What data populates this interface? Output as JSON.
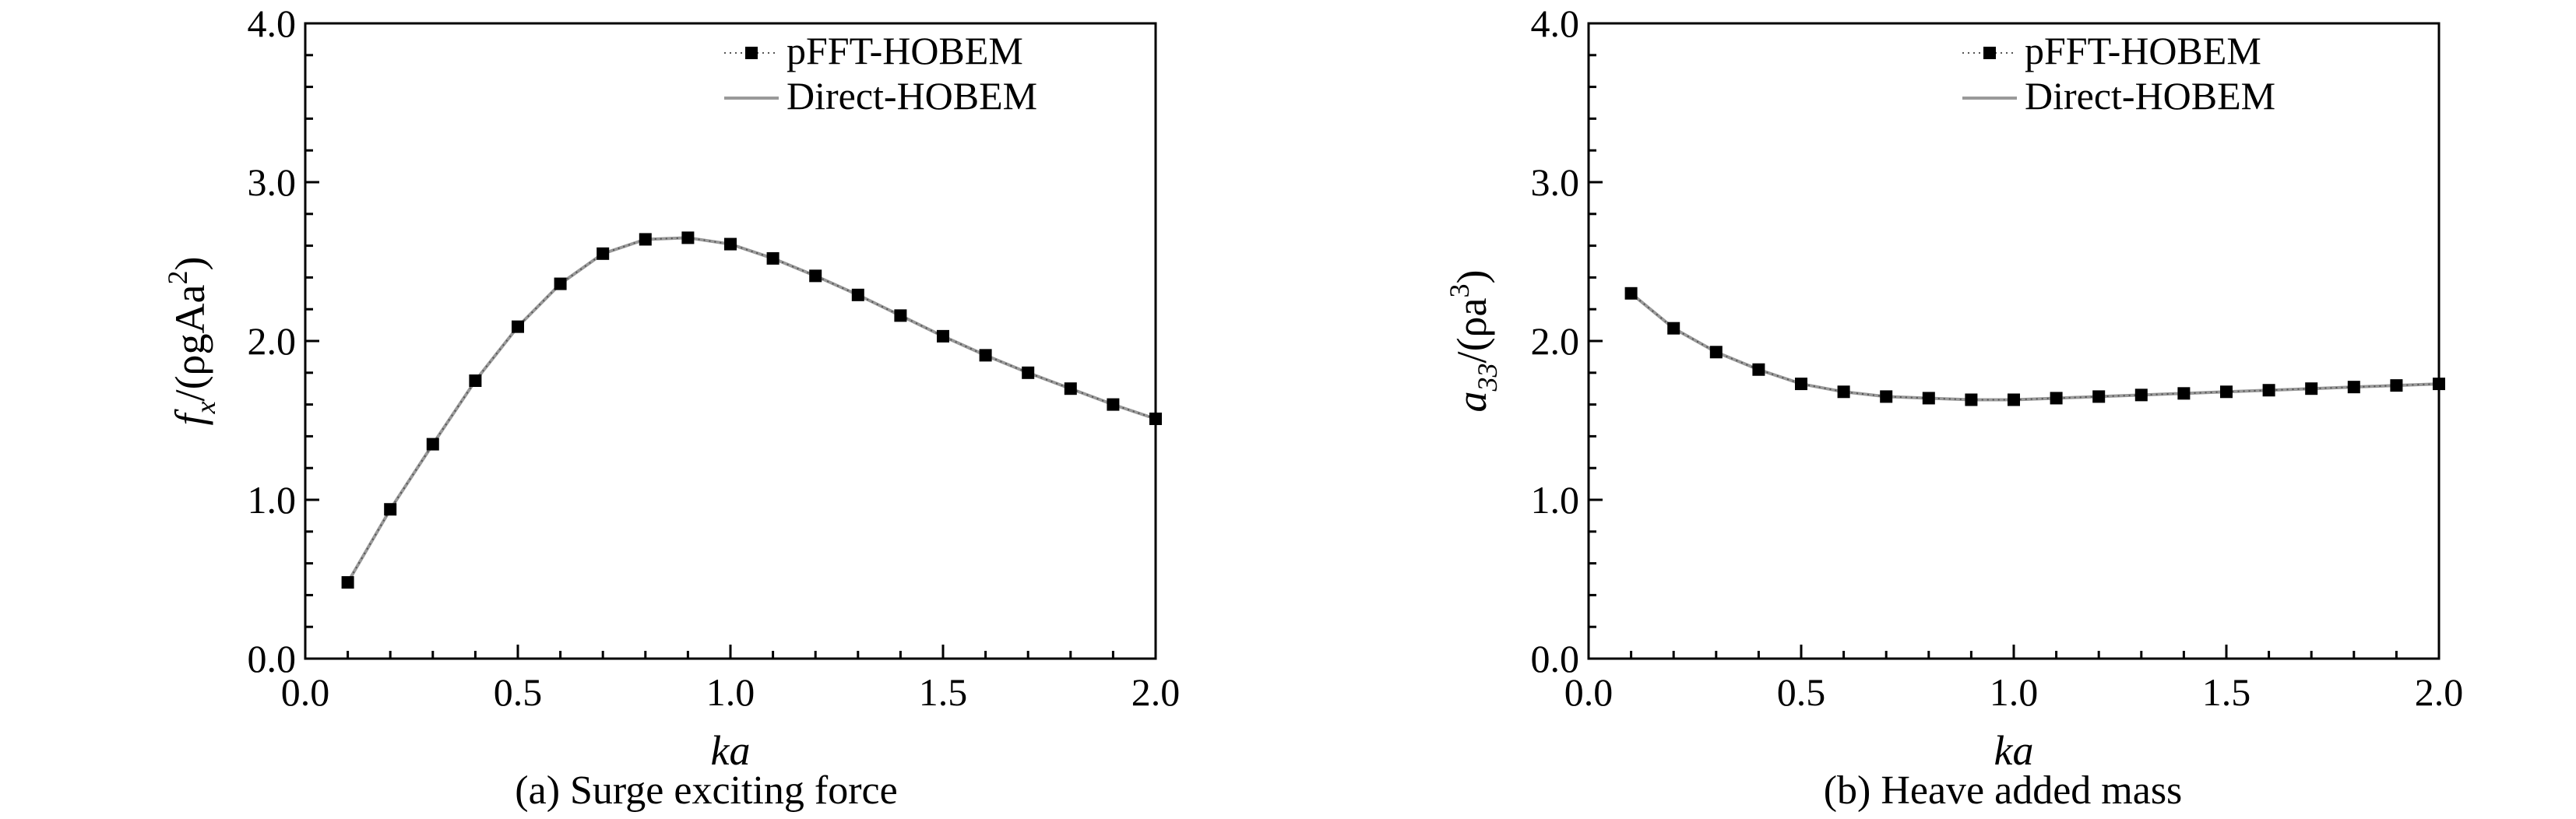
{
  "chart_data": [
    {
      "type": "line",
      "caption": "(a) Surge exciting force",
      "xlabel": "ka",
      "ylabel": {
        "prefix": "f",
        "sub": "x",
        "mid": "/(ρgAa",
        "sup": "2",
        "suffix": ")"
      },
      "xlim": [
        0.0,
        2.0
      ],
      "ylim": [
        0.0,
        4.0
      ],
      "xticks": [
        "0.0",
        "0.5",
        "1.0",
        "1.5",
        "2.0"
      ],
      "yticks": [
        "0.0",
        "1.0",
        "2.0",
        "3.0",
        "4.0"
      ],
      "legend_position": "top-right",
      "grid": false,
      "series": [
        {
          "name": "pFFT-HOBEM",
          "style": "dotted-square-markers",
          "color": "#000000",
          "x": [
            0.1,
            0.2,
            0.3,
            0.4,
            0.5,
            0.6,
            0.7,
            0.8,
            0.9,
            1.0,
            1.1,
            1.2,
            1.3,
            1.4,
            1.5,
            1.6,
            1.7,
            1.8,
            1.9,
            2.0
          ],
          "y": [
            0.48,
            0.94,
            1.35,
            1.75,
            2.09,
            2.36,
            2.55,
            2.64,
            2.65,
            2.61,
            2.52,
            2.41,
            2.29,
            2.16,
            2.03,
            1.91,
            1.8,
            1.7,
            1.6,
            1.51
          ]
        },
        {
          "name": "Direct-HOBEM",
          "style": "solid-line",
          "color": "#9a9a9a",
          "x": [
            0.1,
            0.2,
            0.3,
            0.4,
            0.5,
            0.6,
            0.7,
            0.8,
            0.9,
            1.0,
            1.1,
            1.2,
            1.3,
            1.4,
            1.5,
            1.6,
            1.7,
            1.8,
            1.9,
            2.0
          ],
          "y": [
            0.48,
            0.94,
            1.35,
            1.75,
            2.09,
            2.36,
            2.55,
            2.64,
            2.65,
            2.61,
            2.52,
            2.41,
            2.29,
            2.16,
            2.03,
            1.91,
            1.8,
            1.7,
            1.6,
            1.51
          ]
        }
      ]
    },
    {
      "type": "line",
      "caption": "(b) Heave added mass",
      "xlabel": "ka",
      "ylabel": {
        "prefix": "a",
        "sub": "33",
        "mid": "/(ρa",
        "sup": "3",
        "suffix": ")"
      },
      "xlim": [
        0.0,
        2.0
      ],
      "ylim": [
        0.0,
        4.0
      ],
      "xticks": [
        "0.0",
        "0.5",
        "1.0",
        "1.5",
        "2.0"
      ],
      "yticks": [
        "0.0",
        "1.0",
        "2.0",
        "3.0",
        "4.0"
      ],
      "legend_position": "top-right",
      "grid": false,
      "series": [
        {
          "name": "pFFT-HOBEM",
          "style": "dotted-square-markers",
          "color": "#000000",
          "x": [
            0.1,
            0.2,
            0.3,
            0.4,
            0.5,
            0.6,
            0.7,
            0.8,
            0.9,
            1.0,
            1.1,
            1.2,
            1.3,
            1.4,
            1.5,
            1.6,
            1.7,
            1.8,
            1.9,
            2.0
          ],
          "y": [
            2.3,
            2.08,
            1.93,
            1.82,
            1.73,
            1.68,
            1.65,
            1.64,
            1.63,
            1.63,
            1.64,
            1.65,
            1.66,
            1.67,
            1.68,
            1.69,
            1.7,
            1.71,
            1.72,
            1.73
          ]
        },
        {
          "name": "Direct-HOBEM",
          "style": "solid-line",
          "color": "#9a9a9a",
          "x": [
            0.1,
            0.2,
            0.3,
            0.4,
            0.5,
            0.6,
            0.7,
            0.8,
            0.9,
            1.0,
            1.1,
            1.2,
            1.3,
            1.4,
            1.5,
            1.6,
            1.7,
            1.8,
            1.9,
            2.0
          ],
          "y": [
            2.3,
            2.08,
            1.93,
            1.82,
            1.73,
            1.68,
            1.65,
            1.64,
            1.63,
            1.63,
            1.64,
            1.65,
            1.66,
            1.67,
            1.68,
            1.69,
            1.7,
            1.71,
            1.72,
            1.73
          ]
        }
      ]
    }
  ]
}
